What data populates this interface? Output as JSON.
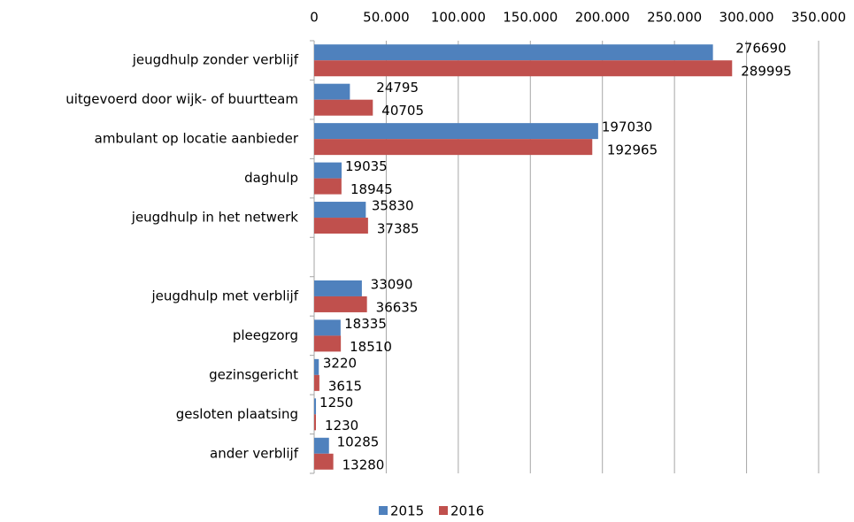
{
  "chart_data": {
    "type": "bar",
    "orientation": "horizontal",
    "categories": [
      "jeugdhulp zonder verblijf",
      "uitgevoerd door wijk- of buurtteam",
      "ambulant op locatie aanbieder",
      "daghulp",
      "jeugdhulp in het netwerk",
      null,
      "jeugdhulp met verblijf",
      "pleegzorg",
      "gezinsgericht",
      "gesloten plaatsing",
      "ander verblijf"
    ],
    "series": [
      {
        "name": "2015",
        "color": "#4f81bd",
        "values": [
          276690,
          24795,
          197030,
          19035,
          35830,
          null,
          33090,
          18335,
          3220,
          1250,
          10285
        ]
      },
      {
        "name": "2016",
        "color": "#c0504d",
        "values": [
          289995,
          40705,
          192965,
          18945,
          37385,
          null,
          36635,
          18510,
          3615,
          1230,
          13280
        ]
      }
    ],
    "xlim": [
      0,
      350000
    ],
    "xticks": [
      0,
      {
        "value": 50000,
        "label": "50.000"
      },
      {
        "value": 100000,
        "label": "100.000"
      },
      {
        "value": 150000,
        "label": "150.000"
      },
      {
        "value": 200000,
        "label": "200.000"
      },
      {
        "value": 250000,
        "label": "250.000"
      },
      {
        "value": 300000,
        "label": "300.000"
      },
      {
        "value": 350000,
        "label": "350.000"
      }
    ],
    "grid": true,
    "legend": "bottom"
  }
}
